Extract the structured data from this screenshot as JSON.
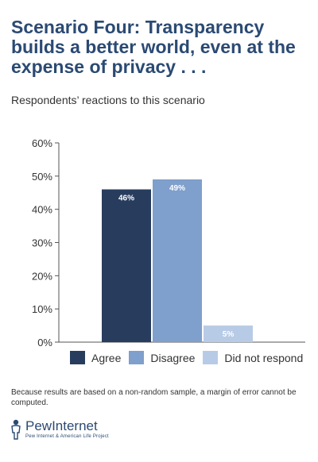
{
  "header": {
    "title": "Scenario Four: Transparency builds a better world, even at the expense of privacy . . .",
    "subtitle": "Respondents’ reactions to this scenario"
  },
  "chart_data": {
    "type": "bar",
    "title": "",
    "xlabel": "",
    "ylabel": "",
    "ylim": [
      0,
      60
    ],
    "yticks": [
      "0%",
      "10%",
      "20%",
      "30%",
      "40%",
      "50%",
      "60%"
    ],
    "ytick_values": [
      0,
      10,
      20,
      30,
      40,
      50,
      60
    ],
    "categories": [
      "Agree",
      "Disagree",
      "Did not respond"
    ],
    "values": [
      46,
      49,
      5
    ],
    "data_labels": [
      "46%",
      "49%",
      "5%"
    ],
    "colors": [
      "#283d5e",
      "#7f9fcc",
      "#b8cbe6"
    ],
    "label_colors": [
      "#ffffff",
      "#ffffff",
      "#ffffff"
    ],
    "grid": false,
    "legend_position": "bottom"
  },
  "legend": {
    "items": [
      {
        "label": "Agree",
        "color": "#283d5e"
      },
      {
        "label": "Disagree",
        "color": "#7f9fcc"
      },
      {
        "label": "Did not respond",
        "color": "#b8cbe6"
      }
    ]
  },
  "footnote": "Because results are based on a non-random sample, a margin of error cannot be computed.",
  "logo": {
    "name": "PewInternet",
    "tagline": "Pew Internet & American Life Project"
  }
}
